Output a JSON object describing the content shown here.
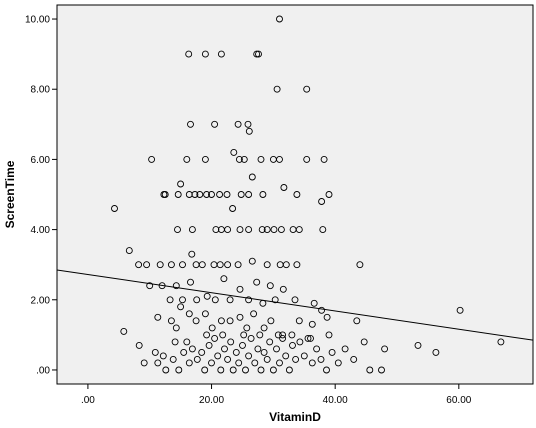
{
  "chart_data": {
    "type": "scatter",
    "xlabel": "VitaminD",
    "ylabel": "ScreenTime",
    "xlim": [
      -5,
      72
    ],
    "ylim": [
      -0.4,
      10.4
    ],
    "x_ticks": [
      ".00",
      "20.00",
      "40.00",
      "60.00"
    ],
    "y_ticks": [
      ".00",
      "2.00",
      "4.00",
      "6.00",
      "8.00",
      "10.00"
    ],
    "plot_background": "#f0f0f0",
    "marker": "open-circle",
    "fit_line": {
      "x": [
        -5,
        72
      ],
      "y": [
        2.85,
        0.85
      ]
    },
    "points": [
      [
        16.3,
        9.0
      ],
      [
        19.0,
        9.0
      ],
      [
        21.6,
        9.0
      ],
      [
        27.3,
        9.0
      ],
      [
        27.6,
        9.0
      ],
      [
        31.0,
        10.0
      ],
      [
        30.6,
        8.0
      ],
      [
        35.4,
        8.0
      ],
      [
        16.6,
        7.0
      ],
      [
        20.5,
        7.0
      ],
      [
        24.3,
        7.0
      ],
      [
        25.9,
        7.0
      ],
      [
        26.1,
        6.8
      ],
      [
        10.3,
        6.0
      ],
      [
        16.0,
        6.0
      ],
      [
        19.0,
        6.0
      ],
      [
        23.6,
        6.2
      ],
      [
        24.5,
        6.0
      ],
      [
        25.3,
        6.0
      ],
      [
        28.0,
        6.0
      ],
      [
        30.0,
        6.0
      ],
      [
        31.0,
        6.0
      ],
      [
        35.4,
        6.0
      ],
      [
        38.2,
        6.0
      ],
      [
        39.0,
        5.0
      ],
      [
        37.8,
        4.8
      ],
      [
        31.7,
        5.2
      ],
      [
        26.6,
        5.5
      ],
      [
        12.3,
        5.0
      ],
      [
        12.5,
        5.0
      ],
      [
        14.6,
        5.0
      ],
      [
        15.0,
        5.3
      ],
      [
        16.4,
        5.0
      ],
      [
        17.3,
        5.0
      ],
      [
        18.1,
        5.0
      ],
      [
        19.2,
        5.0
      ],
      [
        20.0,
        5.0
      ],
      [
        21.3,
        5.0
      ],
      [
        22.5,
        5.0
      ],
      [
        24.8,
        5.0
      ],
      [
        26.0,
        5.0
      ],
      [
        28.3,
        5.0
      ],
      [
        33.8,
        5.0
      ],
      [
        4.3,
        4.6
      ],
      [
        14.5,
        4.0
      ],
      [
        16.9,
        4.0
      ],
      [
        20.7,
        4.0
      ],
      [
        21.6,
        4.0
      ],
      [
        22.6,
        4.0
      ],
      [
        24.6,
        4.0
      ],
      [
        26.0,
        4.0
      ],
      [
        28.2,
        4.0
      ],
      [
        29.0,
        4.0
      ],
      [
        30.1,
        4.0
      ],
      [
        31.3,
        4.0
      ],
      [
        33.2,
        4.0
      ],
      [
        34.2,
        4.0
      ],
      [
        38.0,
        4.0
      ],
      [
        23.4,
        4.6
      ],
      [
        6.7,
        3.4
      ],
      [
        8.2,
        3.0
      ],
      [
        9.5,
        3.0
      ],
      [
        10.0,
        2.4
      ],
      [
        11.7,
        3.0
      ],
      [
        13.5,
        3.0
      ],
      [
        15.3,
        3.0
      ],
      [
        16.8,
        3.3
      ],
      [
        17.5,
        3.0
      ],
      [
        18.5,
        3.0
      ],
      [
        20.4,
        3.0
      ],
      [
        21.4,
        3.0
      ],
      [
        22.6,
        3.0
      ],
      [
        24.3,
        3.0
      ],
      [
        26.6,
        3.1
      ],
      [
        29.0,
        3.0
      ],
      [
        31.1,
        3.0
      ],
      [
        32.1,
        3.0
      ],
      [
        33.8,
        3.0
      ],
      [
        44.0,
        3.0
      ],
      [
        12.0,
        2.4
      ],
      [
        13.3,
        2.0
      ],
      [
        14.3,
        2.4
      ],
      [
        15.3,
        2.0
      ],
      [
        16.6,
        2.5
      ],
      [
        17.6,
        2.0
      ],
      [
        19.3,
        2.1
      ],
      [
        20.6,
        2.0
      ],
      [
        22.0,
        2.6
      ],
      [
        23.0,
        2.0
      ],
      [
        24.6,
        2.3
      ],
      [
        26.0,
        2.0
      ],
      [
        27.3,
        2.5
      ],
      [
        28.3,
        1.9
      ],
      [
        29.5,
        2.4
      ],
      [
        30.3,
        2.0
      ],
      [
        31.6,
        2.3
      ],
      [
        33.5,
        2.0
      ],
      [
        36.6,
        1.9
      ],
      [
        37.8,
        1.7
      ],
      [
        38.7,
        1.5
      ],
      [
        11.3,
        1.5
      ],
      [
        13.5,
        1.4
      ],
      [
        14.3,
        1.2
      ],
      [
        15.0,
        1.8
      ],
      [
        16.4,
        1.6
      ],
      [
        17.5,
        1.4
      ],
      [
        19.0,
        1.6
      ],
      [
        20.1,
        1.2
      ],
      [
        21.6,
        1.4
      ],
      [
        23.0,
        1.4
      ],
      [
        24.6,
        1.5
      ],
      [
        25.7,
        1.2
      ],
      [
        26.8,
        1.6
      ],
      [
        28.5,
        1.2
      ],
      [
        29.6,
        1.4
      ],
      [
        31.5,
        1.0
      ],
      [
        34.2,
        1.4
      ],
      [
        36.3,
        1.3
      ],
      [
        43.5,
        1.4
      ],
      [
        60.2,
        1.7
      ],
      [
        5.8,
        1.1
      ],
      [
        8.3,
        0.7
      ],
      [
        9.1,
        0.2
      ],
      [
        10.9,
        0.5
      ],
      [
        11.3,
        0.2
      ],
      [
        12.2,
        0.4
      ],
      [
        12.6,
        0.0
      ],
      [
        13.8,
        0.3
      ],
      [
        14.1,
        0.8
      ],
      [
        14.7,
        0.0
      ],
      [
        15.5,
        0.5
      ],
      [
        16.0,
        0.8
      ],
      [
        16.4,
        0.2
      ],
      [
        16.9,
        0.6
      ],
      [
        17.7,
        0.3
      ],
      [
        18.4,
        0.5
      ],
      [
        18.9,
        0.0
      ],
      [
        19.6,
        0.7
      ],
      [
        20.0,
        0.2
      ],
      [
        20.5,
        0.9
      ],
      [
        21.0,
        0.4
      ],
      [
        21.5,
        0.0
      ],
      [
        22.1,
        0.6
      ],
      [
        22.6,
        0.3
      ],
      [
        23.1,
        0.8
      ],
      [
        23.5,
        0.0
      ],
      [
        24.0,
        0.5
      ],
      [
        24.4,
        0.2
      ],
      [
        25.0,
        0.7
      ],
      [
        25.5,
        0.0
      ],
      [
        26.0,
        0.4
      ],
      [
        26.4,
        0.9
      ],
      [
        27.0,
        0.2
      ],
      [
        27.5,
        0.6
      ],
      [
        28.0,
        0.0
      ],
      [
        28.5,
        0.5
      ],
      [
        29.0,
        0.3
      ],
      [
        29.4,
        0.8
      ],
      [
        30.0,
        0.0
      ],
      [
        30.5,
        0.6
      ],
      [
        31.0,
        0.2
      ],
      [
        31.5,
        0.9
      ],
      [
        32.0,
        0.4
      ],
      [
        32.6,
        0.0
      ],
      [
        33.1,
        0.7
      ],
      [
        33.6,
        0.3
      ],
      [
        34.3,
        0.8
      ],
      [
        35.0,
        0.4
      ],
      [
        35.6,
        0.9
      ],
      [
        36.3,
        0.2
      ],
      [
        37.0,
        0.6
      ],
      [
        37.7,
        0.3
      ],
      [
        38.6,
        0.0
      ],
      [
        39.5,
        0.5
      ],
      [
        40.5,
        0.2
      ],
      [
        41.6,
        0.6
      ],
      [
        43.0,
        0.3
      ],
      [
        44.7,
        0.8
      ],
      [
        45.6,
        0.0
      ],
      [
        47.5,
        0.0
      ],
      [
        48.0,
        0.6
      ],
      [
        53.4,
        0.7
      ],
      [
        56.3,
        0.5
      ],
      [
        66.8,
        0.8
      ],
      [
        19.2,
        1.0
      ],
      [
        21.8,
        1.0
      ],
      [
        25.2,
        1.0
      ],
      [
        27.8,
        1.0
      ],
      [
        30.8,
        1.0
      ],
      [
        33.0,
        1.0
      ],
      [
        36.0,
        0.9
      ],
      [
        39.0,
        1.0
      ]
    ]
  }
}
